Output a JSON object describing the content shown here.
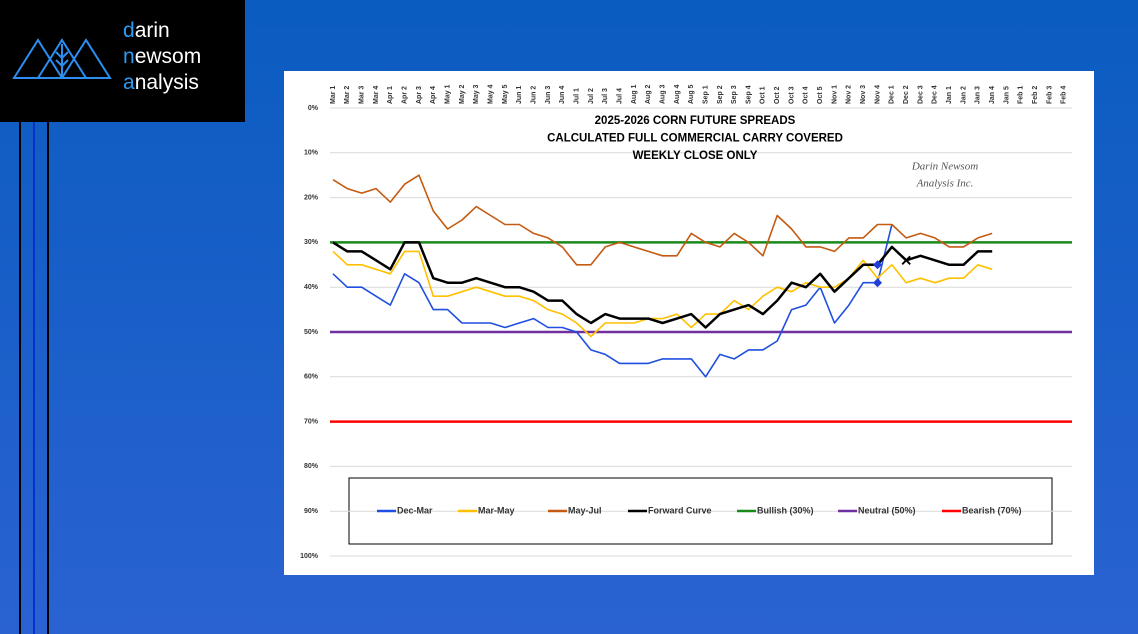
{
  "logo": {
    "lines": [
      {
        "accent": "d",
        "rest": "arin"
      },
      {
        "accent": "n",
        "rest": "ewsom"
      },
      {
        "accent": "a",
        "rest": "nalysis"
      }
    ]
  },
  "chart_data": {
    "type": "line",
    "title": [
      "2025-2026 CORN FUTURE SPREADS",
      "CALCULATED FULL COMMERCIAL CARRY COVERED",
      "WEEKLY CLOSE ONLY"
    ],
    "annotation": [
      "Darin Newsom",
      "Analysis Inc."
    ],
    "categories": [
      "Mar 1",
      "Mar 2",
      "Mar 3",
      "Mar 4",
      "Apr 1",
      "Apr 2",
      "Apr 3",
      "Apr 4",
      "May 1",
      "May 2",
      "May 3",
      "May 4",
      "May 5",
      "Jun 1",
      "Jun 2",
      "Jun 3",
      "Jun 4",
      "Jul 1",
      "Jul 2",
      "Jul 3",
      "Jul 4",
      "Aug 1",
      "Aug 2",
      "Aug 3",
      "Aug 4",
      "Aug 5",
      "Sep 1",
      "Sep 2",
      "Sep 3",
      "Sep 4",
      "Oct 1",
      "Oct 2",
      "Oct 3",
      "Oct 4",
      "Oct 5",
      "Nov 1",
      "Nov 2",
      "Nov 3",
      "Nov 4",
      "Dec 1",
      "Dec 2",
      "Dec 3",
      "Dec 4",
      "Jan 1",
      "Jan 2",
      "Jan 3",
      "Jan 4",
      "Jan 5",
      "Feb 1",
      "Feb 2",
      "Feb 3",
      "Feb 4"
    ],
    "ylim": [
      0,
      100
    ],
    "y_inverted": true,
    "grid": true,
    "yticks": [
      {
        "value": 0,
        "label": "0%"
      },
      {
        "value": 10,
        "label": "10%"
      },
      {
        "value": 20,
        "label": "20%"
      },
      {
        "value": 30,
        "label": "30%"
      },
      {
        "value": 40,
        "label": "40%"
      },
      {
        "value": 50,
        "label": "50%"
      },
      {
        "value": 60,
        "label": "60%"
      },
      {
        "value": 70,
        "label": "70%"
      },
      {
        "value": 80,
        "label": "80%"
      },
      {
        "value": 90,
        "label": "90%"
      },
      {
        "value": 100,
        "label": "100%"
      }
    ],
    "series": [
      {
        "name": "Dec-Mar",
        "color": "#1f4fe0",
        "values": [
          37,
          40,
          40,
          42,
          44,
          37,
          39,
          45,
          45,
          48,
          48,
          48,
          49,
          48,
          47,
          49,
          49,
          50,
          54,
          55,
          57,
          57,
          57,
          56,
          56,
          56,
          60,
          55,
          56,
          54,
          54,
          52,
          45,
          44,
          40,
          48,
          44,
          39,
          39,
          26,
          null,
          null,
          null,
          null,
          null,
          null,
          null,
          null,
          null,
          null,
          null,
          null
        ]
      },
      {
        "name": "Mar-May",
        "color": "#ffc000",
        "values": [
          32,
          35,
          35,
          36,
          37,
          32,
          32,
          42,
          42,
          41,
          40,
          41,
          42,
          42,
          43,
          45,
          46,
          48,
          51,
          48,
          48,
          48,
          47,
          47,
          46,
          49,
          46,
          46,
          43,
          45,
          42,
          40,
          41,
          39,
          40,
          40,
          38,
          34,
          38,
          35,
          39,
          38,
          39,
          38,
          38,
          35,
          36,
          null,
          null,
          null,
          null,
          null
        ]
      },
      {
        "name": "May-Jul",
        "color": "#c55a11",
        "values": [
          16,
          18,
          19,
          18,
          21,
          17,
          15,
          23,
          27,
          25,
          22,
          24,
          26,
          26,
          28,
          29,
          31,
          35,
          35,
          31,
          30,
          31,
          32,
          33,
          33,
          28,
          30,
          31,
          28,
          30,
          33,
          24,
          27,
          31,
          31,
          32,
          29,
          29,
          26,
          26,
          29,
          28,
          29,
          31,
          31,
          29,
          28,
          null,
          null,
          null,
          null,
          null
        ]
      },
      {
        "name": "Forward Curve",
        "color": "#000000",
        "values": [
          30,
          32,
          32,
          34,
          36,
          30,
          30,
          38,
          39,
          39,
          38,
          39,
          40,
          40,
          41,
          43,
          43,
          46,
          48,
          46,
          47,
          47,
          47,
          48,
          47,
          46,
          49,
          46,
          45,
          44,
          46,
          43,
          39,
          40,
          37,
          41,
          38,
          35,
          35,
          31,
          34,
          33,
          34,
          35,
          35,
          32,
          32,
          null,
          null,
          null,
          null,
          null
        ]
      }
    ],
    "reference_lines": [
      {
        "name": "Bullish (30%)",
        "color": "#1a8a1a",
        "value": 30
      },
      {
        "name": "Neutral (50%)",
        "color": "#7030a0",
        "value": 50
      },
      {
        "name": "Bearish (70%)",
        "color": "#ff0000",
        "value": 70
      }
    ],
    "points": [
      {
        "x": "Nov 4",
        "value": 35,
        "color": "#1f3fd8",
        "shape": "diamond"
      },
      {
        "x": "Nov 4",
        "value": 39,
        "color": "#1f3fd8",
        "shape": "diamond"
      },
      {
        "x": "Dec 2",
        "value": 34,
        "color": "#000000",
        "shape": "x"
      }
    ]
  }
}
